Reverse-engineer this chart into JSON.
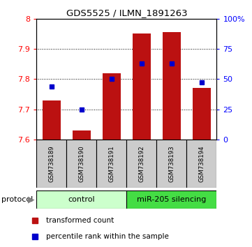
{
  "title": "GDS5525 / ILMN_1891263",
  "samples": [
    "GSM738189",
    "GSM738190",
    "GSM738191",
    "GSM738192",
    "GSM738193",
    "GSM738194"
  ],
  "red_values": [
    7.73,
    7.63,
    7.82,
    7.95,
    7.955,
    7.77
  ],
  "blue_values": [
    44,
    25,
    50,
    63,
    63,
    47
  ],
  "ylim_left": [
    7.6,
    8.0
  ],
  "ylim_right": [
    0,
    100
  ],
  "yticks_left": [
    7.6,
    7.7,
    7.8,
    7.9,
    8.0
  ],
  "yticks_right": [
    0,
    25,
    50,
    75,
    100
  ],
  "ytick_labels_left": [
    "7.6",
    "7.7",
    "7.8",
    "7.9",
    "8"
  ],
  "ytick_labels_right": [
    "0",
    "25",
    "50",
    "75",
    "100%"
  ],
  "group_labels": [
    "control",
    "miR-205 silencing"
  ],
  "group_colors_light": "#ccffcc",
  "group_colors_dark": "#44dd44",
  "protocol_label": "protocol",
  "legend_red": "transformed count",
  "legend_blue": "percentile rank within the sample",
  "bar_color": "#bb1111",
  "dot_color": "#0000cc",
  "bar_width": 0.6,
  "bar_bottom": 7.6,
  "sample_box_color": "#cccccc",
  "title_fontsize": 9.5,
  "tick_fontsize": 8,
  "legend_fontsize": 7.5
}
